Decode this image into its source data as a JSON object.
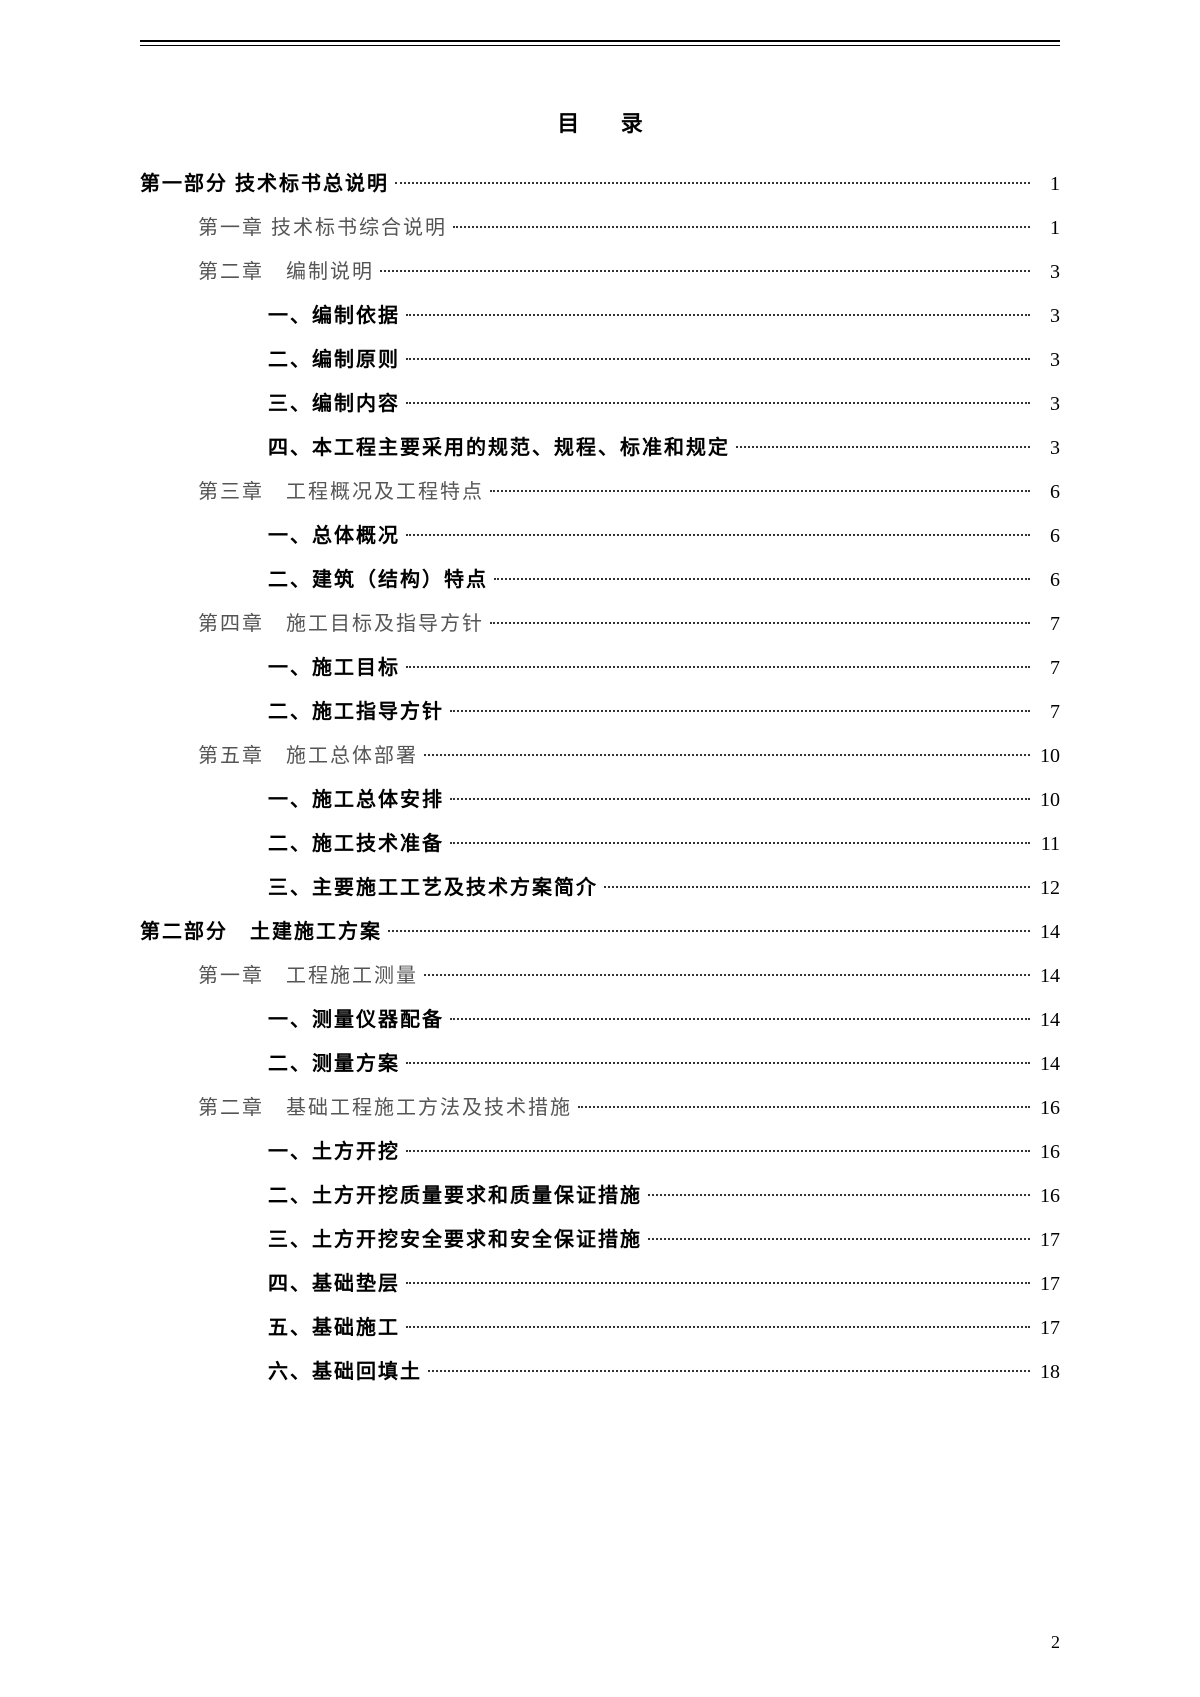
{
  "title": "目 录",
  "footer_page": "2",
  "entries": [
    {
      "label": "第一部分 技术标书总说明",
      "page": "1",
      "indent": 0,
      "bold": true
    },
    {
      "label": "第一章 技术标书综合说明",
      "page": "1",
      "indent": 1,
      "bold": false
    },
    {
      "label": "第二章　编制说明",
      "page": "3",
      "indent": 1,
      "bold": false
    },
    {
      "label": "一、编制依据",
      "page": "3",
      "indent": 2,
      "bold": true
    },
    {
      "label": "二、编制原则",
      "page": "3",
      "indent": 2,
      "bold": true
    },
    {
      "label": "三、编制内容",
      "page": "3",
      "indent": 2,
      "bold": true
    },
    {
      "label": "四、本工程主要采用的规范、规程、标准和规定",
      "page": "3",
      "indent": 2,
      "bold": true
    },
    {
      "label": "第三章　工程概况及工程特点",
      "page": "6",
      "indent": 1,
      "bold": false
    },
    {
      "label": "一、总体概况",
      "page": "6",
      "indent": 2,
      "bold": true
    },
    {
      "label": "二、建筑（结构）特点",
      "page": "6",
      "indent": 2,
      "bold": true
    },
    {
      "label": "第四章　施工目标及指导方针",
      "page": "7",
      "indent": 1,
      "bold": false
    },
    {
      "label": "一、施工目标",
      "page": "7",
      "indent": 2,
      "bold": true
    },
    {
      "label": "二、施工指导方针",
      "page": "7",
      "indent": 2,
      "bold": true
    },
    {
      "label": "第五章　施工总体部署",
      "page": "10",
      "indent": 1,
      "bold": false
    },
    {
      "label": "一、施工总体安排",
      "page": "10",
      "indent": 2,
      "bold": true
    },
    {
      "label": "二、施工技术准备",
      "page": "11",
      "indent": 2,
      "bold": true
    },
    {
      "label": "三、主要施工工艺及技术方案简介",
      "page": "12",
      "indent": 2,
      "bold": true
    },
    {
      "label": "第二部分　土建施工方案",
      "page": "14",
      "indent": 0,
      "bold": true
    },
    {
      "label": "第一章　工程施工测量",
      "page": "14",
      "indent": 1,
      "bold": false
    },
    {
      "label": "一、测量仪器配备",
      "page": "14",
      "indent": 2,
      "bold": true
    },
    {
      "label": "二、测量方案",
      "page": "14",
      "indent": 2,
      "bold": true
    },
    {
      "label": "第二章　基础工程施工方法及技术措施",
      "page": "16",
      "indent": 1,
      "bold": false
    },
    {
      "label": "一、土方开挖",
      "page": "16",
      "indent": 2,
      "bold": true
    },
    {
      "label": "二、土方开挖质量要求和质量保证措施",
      "page": "16",
      "indent": 2,
      "bold": true
    },
    {
      "label": "三、土方开挖安全要求和安全保证措施",
      "page": "17",
      "indent": 2,
      "bold": true
    },
    {
      "label": "四、基础垫层",
      "page": "17",
      "indent": 2,
      "bold": true
    },
    {
      "label": "五、基础施工",
      "page": "17",
      "indent": 2,
      "bold": true
    },
    {
      "label": "六、基础回填土",
      "page": "18",
      "indent": 2,
      "bold": true
    }
  ]
}
